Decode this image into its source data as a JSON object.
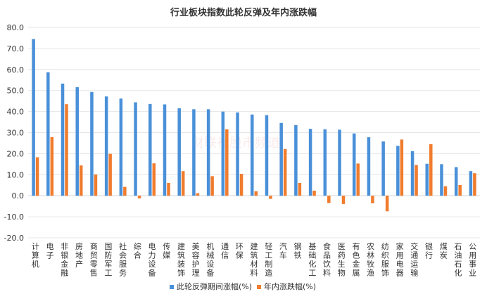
{
  "chart_data": {
    "type": "bar",
    "title": "行业板块指数此轮反弹及年内涨跌幅",
    "watermark": "财联社股市频道",
    "ylim": [
      -20,
      80
    ],
    "yticks": [
      "80.0",
      "70.0",
      "60.0",
      "50.0",
      "40.0",
      "30.0",
      "20.0",
      "10.0",
      "0.0",
      "-10.0",
      "-20.0"
    ],
    "ytick_values": [
      80,
      70,
      60,
      50,
      40,
      30,
      20,
      10,
      0,
      -10,
      -20
    ],
    "categories": [
      "计算机",
      "电子",
      "非银金融",
      "房地产",
      "商贸零售",
      "国防军工",
      "社会服务",
      "综合",
      "电力设备",
      "传媒",
      "建筑装饰",
      "美容护理",
      "机械设备",
      "通信",
      "环保",
      "建筑材料",
      "轻工制造",
      "汽车",
      "钢铁",
      "基础化工",
      "食品饮料",
      "医药生物",
      "有色金属",
      "农林牧渔",
      "纺织服饰",
      "家用电器",
      "交通运输",
      "银行",
      "煤炭",
      "石油石化",
      "公用事业"
    ],
    "series": [
      {
        "name": "此轮反弹期间涨幅(%)",
        "color": "#4a90d9",
        "values": [
          74.5,
          58.7,
          53.3,
          51.6,
          49.3,
          47.2,
          46.2,
          44.4,
          43.6,
          43.4,
          41.6,
          41.1,
          41.1,
          40.0,
          39.6,
          38.6,
          38.3,
          34.6,
          33.6,
          31.8,
          31.6,
          31.4,
          29.6,
          27.8,
          25.8,
          23.7,
          21.2,
          15.2,
          15.0,
          13.6,
          11.7
        ]
      },
      {
        "name": "年内涨跌幅(%)",
        "color": "#f07c2e",
        "values": [
          18.3,
          27.9,
          43.5,
          14.4,
          10.1,
          19.9,
          4.2,
          -1.3,
          15.4,
          6.1,
          11.7,
          1.2,
          9.3,
          31.6,
          10.4,
          2.1,
          -1.5,
          22.2,
          6.1,
          2.4,
          -3.5,
          -3.9,
          15.3,
          -3.6,
          -7.4,
          26.7,
          14.6,
          24.5,
          4.5,
          5.1,
          10.7
        ]
      }
    ]
  }
}
